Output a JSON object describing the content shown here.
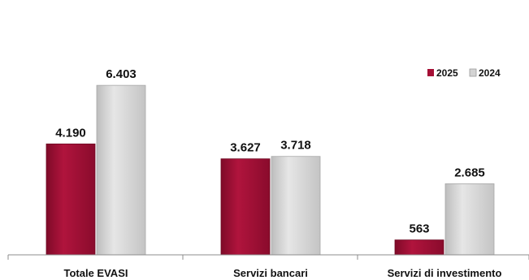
{
  "chart_data": {
    "type": "bar",
    "categories": [
      "Totale EVASI",
      "Servizi bancari",
      "Servizi di investimento"
    ],
    "series": [
      {
        "name": "2025",
        "values": [
          4190,
          3627,
          563
        ],
        "labels": [
          "4.190",
          "3.627",
          "563"
        ],
        "color": "#a50f35"
      },
      {
        "name": "2024",
        "values": [
          6403,
          3718,
          2685
        ],
        "labels": [
          "6.403",
          "3.718",
          "2.685"
        ],
        "color": "#d4d4d4"
      }
    ],
    "ylim": [
      0,
      8000
    ],
    "grid": false,
    "legend_position": "top-right"
  }
}
